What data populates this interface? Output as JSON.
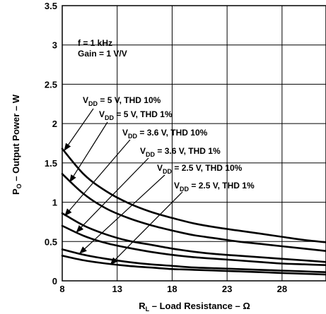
{
  "chart_data": {
    "type": "line",
    "title": "",
    "xlabel": {
      "main": "R",
      "sub": "L",
      "rest": " – Load Resistance – Ω"
    },
    "ylabel": {
      "main": "P",
      "sub": "O",
      "rest": " – Output Power – W"
    },
    "xlim": [
      8,
      32
    ],
    "ylim": [
      0,
      3.5
    ],
    "xticks": [
      8,
      13,
      18,
      23,
      28
    ],
    "yticks": [
      0,
      0.5,
      1,
      1.5,
      2,
      2.5,
      3,
      3.5
    ],
    "grid": true,
    "annotations": [
      "f = 1 kHz",
      "Gain = 1 V/V"
    ],
    "series": [
      {
        "label": {
          "pre": "V",
          "sub": "DD",
          "post": " = 5 V, THD 10%"
        },
        "x": [
          8,
          10,
          12,
          14,
          16,
          18,
          20,
          22,
          24,
          26,
          28,
          30,
          32
        ],
        "y": [
          1.68,
          1.35,
          1.14,
          0.99,
          0.88,
          0.8,
          0.73,
          0.68,
          0.64,
          0.6,
          0.56,
          0.52,
          0.49
        ]
      },
      {
        "label": {
          "pre": "V",
          "sub": "DD",
          "post": " = 5 V, THD 1%"
        },
        "x": [
          8,
          10,
          12,
          14,
          16,
          18,
          20,
          22,
          24,
          26,
          28,
          30,
          32
        ],
        "y": [
          1.36,
          1.1,
          0.92,
          0.8,
          0.71,
          0.64,
          0.58,
          0.54,
          0.5,
          0.47,
          0.44,
          0.41,
          0.38
        ]
      },
      {
        "label": {
          "pre": "V",
          "sub": "DD",
          "post": " = 3.6 V, THD 10%"
        },
        "x": [
          8,
          10,
          12,
          14,
          16,
          18,
          20,
          22,
          24,
          26,
          28,
          30,
          32
        ],
        "y": [
          0.86,
          0.7,
          0.59,
          0.51,
          0.46,
          0.41,
          0.37,
          0.34,
          0.32,
          0.3,
          0.28,
          0.26,
          0.24
        ]
      },
      {
        "label": {
          "pre": "V",
          "sub": "DD",
          "post": " = 3.6 V, THD 1%"
        },
        "x": [
          8,
          10,
          12,
          14,
          16,
          18,
          20,
          22,
          24,
          26,
          28,
          30,
          32
        ],
        "y": [
          0.7,
          0.57,
          0.48,
          0.42,
          0.37,
          0.33,
          0.3,
          0.28,
          0.26,
          0.24,
          0.22,
          0.21,
          0.2
        ]
      },
      {
        "label": {
          "pre": "V",
          "sub": "DD",
          "post": " = 2.5 V, THD 10%"
        },
        "x": [
          8,
          10,
          12,
          14,
          16,
          18,
          20,
          22,
          24,
          26,
          28,
          30,
          32
        ],
        "y": [
          0.4,
          0.33,
          0.28,
          0.24,
          0.21,
          0.19,
          0.17,
          0.16,
          0.15,
          0.14,
          0.13,
          0.12,
          0.11
        ]
      },
      {
        "label": {
          "pre": "V",
          "sub": "DD",
          "post": " = 2.5 V, THD 1%"
        },
        "x": [
          8,
          10,
          12,
          14,
          16,
          18,
          20,
          22,
          24,
          26,
          28,
          30,
          32
        ],
        "y": [
          0.32,
          0.26,
          0.22,
          0.19,
          0.17,
          0.15,
          0.14,
          0.13,
          0.12,
          0.11,
          0.1,
          0.09,
          0.08
        ]
      }
    ],
    "arrow_targets": [
      {
        "x": 8.2,
        "y": 1.66
      },
      {
        "x": 8.7,
        "y": 1.26
      },
      {
        "x": 8.25,
        "y": 0.83
      },
      {
        "x": 9.3,
        "y": 0.62
      },
      {
        "x": 9.6,
        "y": 0.35
      },
      {
        "x": 12.4,
        "y": 0.21
      }
    ]
  }
}
